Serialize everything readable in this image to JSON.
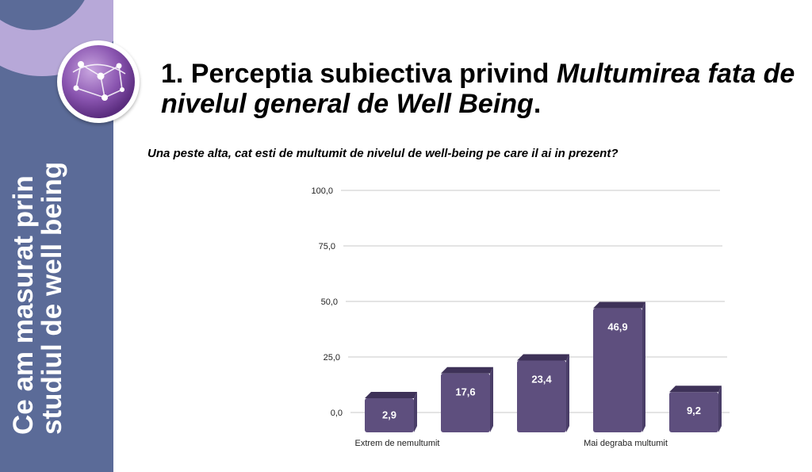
{
  "sidebar": {
    "text_line1": "Ce am masurat prin",
    "text_line2": "studiul de well being",
    "bg_color": "#5b6b98",
    "accent_color": "#b7a8d8"
  },
  "logo": {
    "icon": "network-globe-icon",
    "color": "#7a4fa0"
  },
  "title": {
    "part1": "1. Perceptia subiectiva privind ",
    "part2_italic": "Multumirea fata de nivelul general de Well Being",
    "part3": "."
  },
  "question": "Una peste alta, cat esti de multumit de nivelul de well-being pe care il ai in prezent?",
  "chart_data": {
    "type": "bar",
    "categories": [
      "Extrem de nemultumit",
      "",
      "",
      "Mai degraba multumit",
      ""
    ],
    "values": [
      2.9,
      17.6,
      23.4,
      46.9,
      9.2
    ],
    "value_labels": [
      "2,9",
      "17,6",
      "23,4",
      "46,9",
      "9,2"
    ],
    "yticks": [
      "0,0",
      "25,0",
      "50,0",
      "75,0",
      "100,0"
    ],
    "ylim": [
      0,
      100
    ],
    "grid": true,
    "bar_color": "#5e4f7e",
    "bar_top_color": "#3e3258"
  }
}
